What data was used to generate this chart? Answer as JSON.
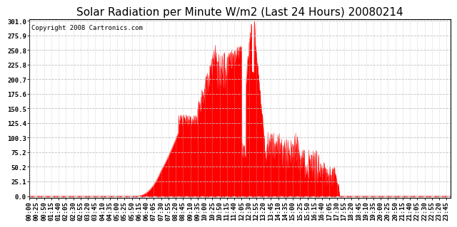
{
  "title": "Solar Radiation per Minute W/m2 (Last 24 Hours) 20080214",
  "copyright_text": "Copyright 2008 Cartronics.com",
  "yticks": [
    0.0,
    25.1,
    50.2,
    75.2,
    100.3,
    125.4,
    150.5,
    175.6,
    200.7,
    225.8,
    250.8,
    275.9,
    301.0
  ],
  "ymax": 301.0,
  "ymin": 0.0,
  "fill_color": "#FF0000",
  "line_color": "#FF0000",
  "bg_color": "#FFFFFF",
  "grid_color": "#C0C0C0",
  "baseline_color": "#FF0000",
  "title_fontsize": 11,
  "copyright_fontsize": 6.5,
  "tick_fontsize": 6.5,
  "xtick_step": 25,
  "n_points": 1440
}
